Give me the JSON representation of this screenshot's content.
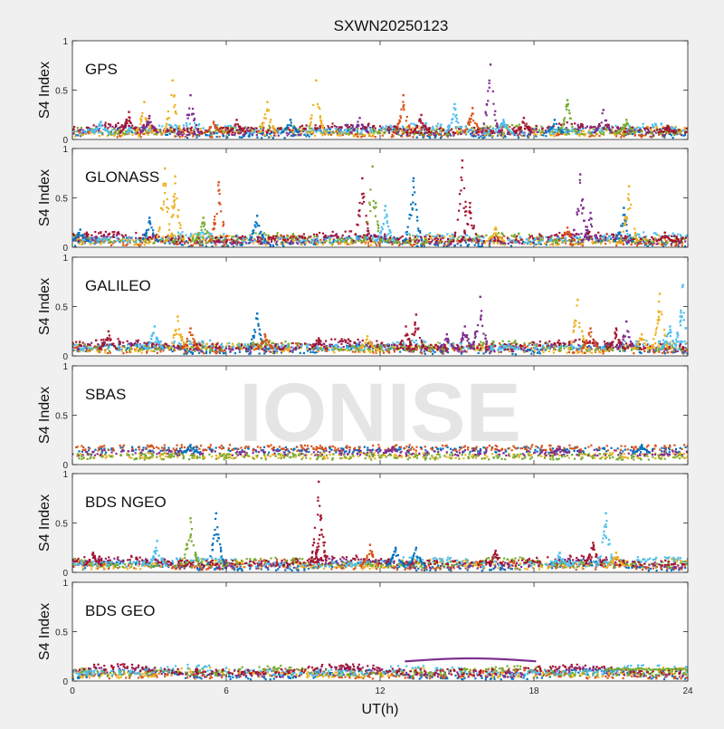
{
  "figure": {
    "title": "SXWN20250123",
    "watermark": "IONISE",
    "xlabel": "UT(h)",
    "background_color": "#f0f0f0",
    "axes_color": "#ffffff"
  },
  "chart_data": {
    "type": "scatter",
    "x_range": [
      0,
      24
    ],
    "x_ticks": [
      "0",
      "6",
      "12",
      "18",
      "24"
    ],
    "y_range": [
      0,
      1
    ],
    "y_ticks": [
      "0",
      "0.5",
      "1"
    ],
    "grid": false,
    "legend": "none",
    "series_colors": [
      "#0072BD",
      "#D95319",
      "#EDB120",
      "#7E2F8E",
      "#77AC30",
      "#4DBEEE",
      "#A2142F"
    ],
    "panels": [
      {
        "label": "GPS",
        "ylabel": "S4 Index",
        "baseline": 0.07,
        "spikes": [
          [
            1.1,
            0.18,
            "#4DBEEE"
          ],
          [
            2.2,
            0.28,
            "#A2142F"
          ],
          [
            2.8,
            0.38,
            "#EDB120"
          ],
          [
            3.0,
            0.24,
            "#7E2F8E"
          ],
          [
            3.9,
            0.6,
            "#EDB120"
          ],
          [
            4.6,
            0.45,
            "#7E2F8E"
          ],
          [
            5.5,
            0.18,
            "#D95319"
          ],
          [
            6.4,
            0.2,
            "#A2142F"
          ],
          [
            7.6,
            0.38,
            "#EDB120"
          ],
          [
            8.5,
            0.2,
            "#0072BD"
          ],
          [
            9.5,
            0.6,
            "#EDB120"
          ],
          [
            11.2,
            0.22,
            "#7E2F8E"
          ],
          [
            12.9,
            0.45,
            "#D95319"
          ],
          [
            13.6,
            0.25,
            "#A2142F"
          ],
          [
            14.9,
            0.36,
            "#4DBEEE"
          ],
          [
            15.6,
            0.32,
            "#D95319"
          ],
          [
            16.3,
            0.76,
            "#7E2F8E"
          ],
          [
            16.8,
            0.2,
            "#4DBEEE"
          ],
          [
            17.6,
            0.22,
            "#A2142F"
          ],
          [
            18.8,
            0.2,
            "#0072BD"
          ],
          [
            19.3,
            0.4,
            "#77AC30"
          ],
          [
            20.7,
            0.3,
            "#7E2F8E"
          ],
          [
            21.6,
            0.2,
            "#77AC30"
          ],
          [
            23.2,
            0.14,
            "#A2142F"
          ]
        ]
      },
      {
        "label": "GLONASS",
        "ylabel": "S4 Index",
        "baseline": 0.06,
        "spikes": [
          [
            0.3,
            0.18,
            "#0072BD"
          ],
          [
            3.0,
            0.3,
            "#0072BD"
          ],
          [
            3.6,
            0.8,
            "#EDB120"
          ],
          [
            4.0,
            0.72,
            "#EDB120"
          ],
          [
            5.1,
            0.3,
            "#77AC30"
          ],
          [
            5.7,
            0.66,
            "#D95319"
          ],
          [
            7.2,
            0.32,
            "#0072BD"
          ],
          [
            11.3,
            0.7,
            "#A2142F"
          ],
          [
            11.7,
            0.82,
            "#77AC30"
          ],
          [
            12.2,
            0.42,
            "#4DBEEE"
          ],
          [
            13.3,
            0.7,
            "#0072BD"
          ],
          [
            15.2,
            0.88,
            "#A2142F"
          ],
          [
            15.5,
            0.45,
            "#A2142F"
          ],
          [
            16.5,
            0.2,
            "#EDB120"
          ],
          [
            19.3,
            0.2,
            "#D95319"
          ],
          [
            19.8,
            0.74,
            "#7E2F8E"
          ],
          [
            20.2,
            0.35,
            "#7E2F8E"
          ],
          [
            21.5,
            0.4,
            "#0072BD"
          ],
          [
            21.7,
            0.62,
            "#EDB120"
          ],
          [
            23.1,
            0.15,
            "#A2142F"
          ]
        ]
      },
      {
        "label": "GALILEO",
        "ylabel": "S4 Index",
        "baseline": 0.07,
        "spikes": [
          [
            1.4,
            0.25,
            "#A2142F"
          ],
          [
            3.2,
            0.3,
            "#4DBEEE"
          ],
          [
            4.1,
            0.4,
            "#EDB120"
          ],
          [
            4.6,
            0.28,
            "#D95319"
          ],
          [
            7.2,
            0.43,
            "#0072BD"
          ],
          [
            7.5,
            0.22,
            "#D95319"
          ],
          [
            9.6,
            0.18,
            "#A2142F"
          ],
          [
            11.5,
            0.2,
            "#EDB120"
          ],
          [
            13.0,
            0.3,
            "#A2142F"
          ],
          [
            13.4,
            0.42,
            "#A2142F"
          ],
          [
            14.6,
            0.22,
            "#7E2F8E"
          ],
          [
            15.3,
            0.3,
            "#7E2F8E"
          ],
          [
            15.9,
            0.6,
            "#7E2F8E"
          ],
          [
            17.0,
            0.12,
            "#4DBEEE"
          ],
          [
            19.7,
            0.57,
            "#EDB120"
          ],
          [
            20.2,
            0.28,
            "#D95319"
          ],
          [
            21.2,
            0.28,
            "#A2142F"
          ],
          [
            21.6,
            0.35,
            "#7E2F8E"
          ],
          [
            22.2,
            0.22,
            "#EDB120"
          ],
          [
            22.9,
            0.63,
            "#EDB120"
          ],
          [
            23.3,
            0.3,
            "#4DBEEE"
          ],
          [
            23.8,
            0.72,
            "#4DBEEE"
          ]
        ]
      },
      {
        "label": "SBAS",
        "ylabel": "S4 Index",
        "baseline": 0.12,
        "spikes": [
          [
            4.6,
            0.2,
            "#0072BD"
          ],
          [
            12.5,
            0.18,
            "#7E2F8E"
          ],
          [
            19.0,
            0.18,
            "#7E2F8E"
          ],
          [
            22.2,
            0.2,
            "#0072BD"
          ]
        ]
      },
      {
        "label": "BDS NGEO",
        "ylabel": "S4 Index",
        "baseline": 0.07,
        "spikes": [
          [
            0.8,
            0.2,
            "#A2142F"
          ],
          [
            3.3,
            0.32,
            "#4DBEEE"
          ],
          [
            4.6,
            0.55,
            "#77AC30"
          ],
          [
            5.6,
            0.6,
            "#0072BD"
          ],
          [
            9.6,
            0.92,
            "#A2142F"
          ],
          [
            9.7,
            0.55,
            "#A2142F"
          ],
          [
            11.6,
            0.28,
            "#D95319"
          ],
          [
            12.6,
            0.25,
            "#0072BD"
          ],
          [
            13.4,
            0.25,
            "#0072BD"
          ],
          [
            16.5,
            0.22,
            "#A2142F"
          ],
          [
            19.0,
            0.2,
            "#4DBEEE"
          ],
          [
            20.3,
            0.3,
            "#A2142F"
          ],
          [
            20.8,
            0.6,
            "#4DBEEE"
          ],
          [
            21.2,
            0.2,
            "#EDB120"
          ]
        ]
      },
      {
        "label": "BDS GEO",
        "ylabel": "S4 Index",
        "baseline": 0.07,
        "spikes": []
      }
    ]
  }
}
